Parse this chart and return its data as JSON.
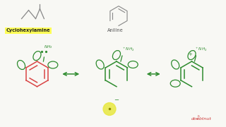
{
  "bg_color": "#f8f8f4",
  "title_left": "Cyclohexylamine",
  "title_right": "Aniline",
  "highlight_color": "#e8e840",
  "red_color": "#d94444",
  "green_color": "#2e8b2e",
  "gray_color": "#888888",
  "doubtnut_color": "#cc3333"
}
